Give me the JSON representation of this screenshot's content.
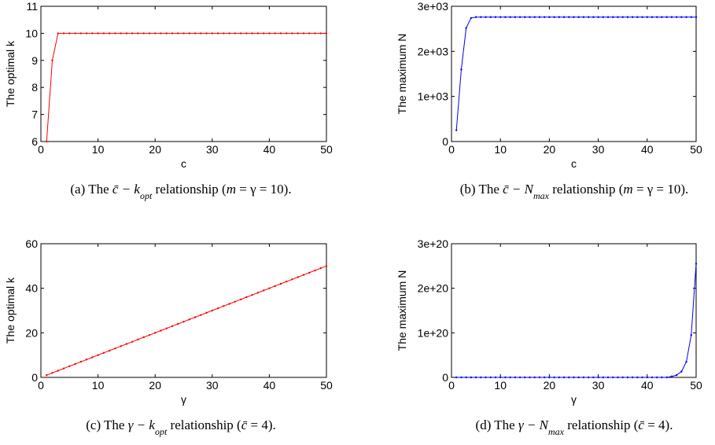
{
  "chart_data": [
    {
      "type": "line",
      "xlabel": "c",
      "ylabel": "The optimal k",
      "color": "#ff0000",
      "x": [
        1,
        2,
        3,
        4,
        5,
        6,
        7,
        8,
        9,
        10,
        11,
        12,
        13,
        14,
        15,
        16,
        17,
        18,
        19,
        20,
        21,
        22,
        23,
        24,
        25,
        26,
        27,
        28,
        29,
        30,
        31,
        32,
        33,
        34,
        35,
        36,
        37,
        38,
        39,
        40,
        41,
        42,
        43,
        44,
        45,
        46,
        47,
        48,
        49,
        50
      ],
      "series": [
        {
          "values": [
            6,
            9,
            10,
            10,
            10,
            10,
            10,
            10,
            10,
            10,
            10,
            10,
            10,
            10,
            10,
            10,
            10,
            10,
            10,
            10,
            10,
            10,
            10,
            10,
            10,
            10,
            10,
            10,
            10,
            10,
            10,
            10,
            10,
            10,
            10,
            10,
            10,
            10,
            10,
            10,
            10,
            10,
            10,
            10,
            10,
            10,
            10,
            10,
            10,
            10
          ]
        }
      ],
      "xlim": [
        0,
        50
      ],
      "ylim": [
        6,
        11
      ],
      "xticks": [
        0,
        10,
        20,
        30,
        40,
        50
      ],
      "yticks": [
        6,
        7,
        8,
        9,
        10,
        11
      ],
      "caption": [
        "(a) The ",
        "c̄ − k",
        "opt",
        " relationship (",
        "m",
        " = γ = 10)."
      ]
    },
    {
      "type": "line",
      "xlabel": "c",
      "ylabel": "The maximum N",
      "color": "#0000ff",
      "x": [
        1,
        2,
        3,
        4,
        5,
        6,
        7,
        8,
        9,
        10,
        11,
        12,
        13,
        14,
        15,
        16,
        17,
        18,
        19,
        20,
        21,
        22,
        23,
        24,
        25,
        26,
        27,
        28,
        29,
        30,
        31,
        32,
        33,
        34,
        35,
        36,
        37,
        38,
        39,
        40,
        41,
        42,
        43,
        44,
        45,
        46,
        47,
        48,
        49,
        50
      ],
      "series": [
        {
          "values": [
            250,
            1600,
            2520,
            2740,
            2760,
            2760,
            2760,
            2760,
            2760,
            2760,
            2760,
            2760,
            2760,
            2760,
            2760,
            2760,
            2760,
            2760,
            2760,
            2760,
            2760,
            2760,
            2760,
            2760,
            2760,
            2760,
            2760,
            2760,
            2760,
            2760,
            2760,
            2760,
            2760,
            2760,
            2760,
            2760,
            2760,
            2760,
            2760,
            2760,
            2760,
            2760,
            2760,
            2760,
            2760,
            2760,
            2760,
            2760,
            2760,
            2760
          ]
        }
      ],
      "xlim": [
        0,
        50
      ],
      "ylim": [
        0,
        3000
      ],
      "xticks": [
        0,
        10,
        20,
        30,
        40,
        50
      ],
      "yticks": [
        0,
        {
          "value": 1000,
          "label": "1e+03"
        },
        {
          "value": 2000,
          "label": "2e+03"
        },
        {
          "value": 3000,
          "label": "3e+03"
        }
      ],
      "caption": [
        "(b) The ",
        "c̄ − N",
        "max",
        " relationship (",
        "m",
        " = γ = 10)."
      ]
    },
    {
      "type": "line",
      "xlabel": "γ",
      "ylabel": "The optimal k",
      "color": "#ff0000",
      "x": [
        1,
        2,
        3,
        4,
        5,
        6,
        7,
        8,
        9,
        10,
        11,
        12,
        13,
        14,
        15,
        16,
        17,
        18,
        19,
        20,
        21,
        22,
        23,
        24,
        25,
        26,
        27,
        28,
        29,
        30,
        31,
        32,
        33,
        34,
        35,
        36,
        37,
        38,
        39,
        40,
        41,
        42,
        43,
        44,
        45,
        46,
        47,
        48,
        49,
        50
      ],
      "series": [
        {
          "values": [
            1,
            2,
            3,
            4,
            5,
            6,
            7,
            8,
            9,
            10,
            11,
            12,
            13,
            14,
            15,
            16,
            17,
            18,
            19,
            20,
            21,
            22,
            23,
            24,
            25,
            26,
            27,
            28,
            29,
            30,
            31,
            32,
            33,
            34,
            35,
            36,
            37,
            38,
            39,
            40,
            41,
            42,
            43,
            44,
            45,
            46,
            47,
            48,
            49,
            50
          ]
        }
      ],
      "xlim": [
        0,
        50
      ],
      "ylim": [
        0,
        60
      ],
      "xticks": [
        0,
        10,
        20,
        30,
        40,
        50
      ],
      "yticks": [
        0,
        20,
        40,
        60
      ],
      "caption": [
        "(c) The ",
        "γ − k",
        "opt",
        " relationship (",
        "c̄",
        " = 4)."
      ]
    },
    {
      "type": "line",
      "xlabel": "γ",
      "ylabel": "The maximum N",
      "color": "#0000ff",
      "x": [
        1,
        2,
        3,
        4,
        5,
        6,
        7,
        8,
        9,
        10,
        11,
        12,
        13,
        14,
        15,
        16,
        17,
        18,
        19,
        20,
        21,
        22,
        23,
        24,
        25,
        26,
        27,
        28,
        29,
        30,
        31,
        32,
        33,
        34,
        35,
        36,
        37,
        38,
        39,
        40,
        41,
        42,
        43,
        44,
        45,
        46,
        47,
        48,
        49,
        50
      ],
      "series": [
        {
          "values": [
            0,
            0,
            0,
            0,
            0,
            0,
            0,
            0,
            0,
            0,
            0,
            0,
            0,
            0,
            0,
            0,
            0,
            0,
            0,
            0,
            0,
            0,
            0,
            0,
            0,
            0,
            0,
            0,
            0,
            0,
            0,
            0,
            0,
            0,
            0,
            0,
            0,
            0,
            0,
            0,
            0,
            0,
            0,
            0,
            2e+18,
            5e+18,
            1.3e+19,
            3.5e+19,
            9.5e+19,
            2.55e+20
          ]
        }
      ],
      "xlim": [
        0,
        50
      ],
      "ylim": [
        0,
        3e+20
      ],
      "xticks": [
        0,
        10,
        20,
        30,
        40,
        50
      ],
      "yticks": [
        0,
        {
          "value": 1e+20,
          "label": "1e+20"
        },
        {
          "value": 2e+20,
          "label": "2e+20"
        },
        {
          "value": 3e+20,
          "label": "3e+20"
        }
      ],
      "caption": [
        "(d) The ",
        "γ − N",
        "max",
        " relationship (",
        "c̄",
        " = 4)."
      ]
    }
  ]
}
